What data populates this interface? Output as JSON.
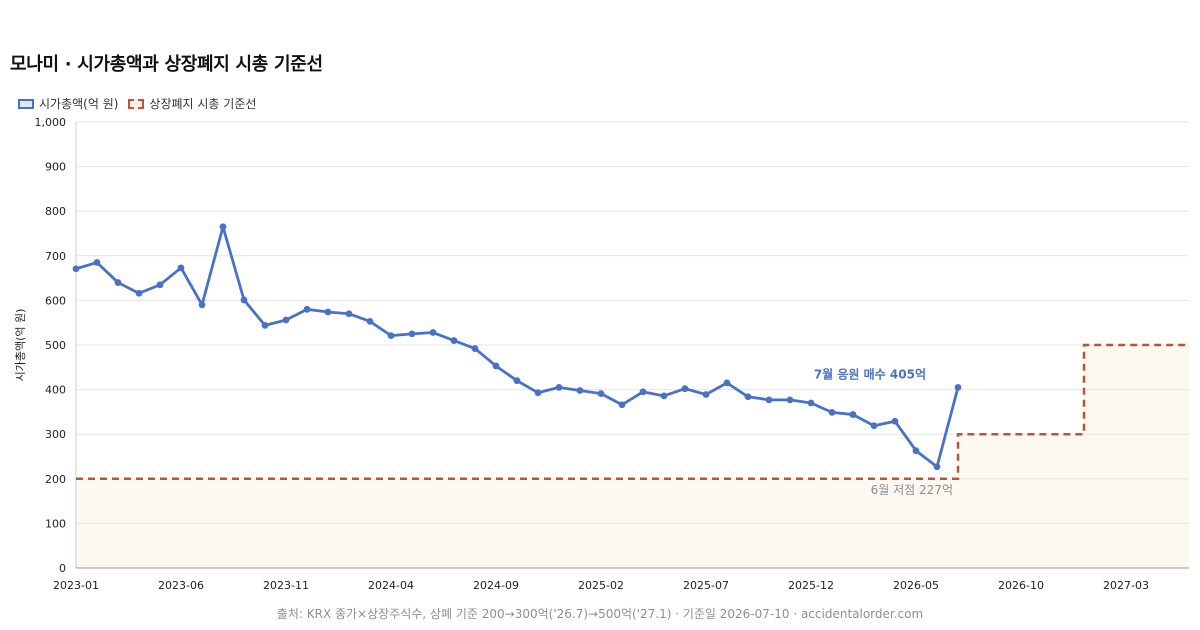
{
  "header": {
    "title": "모나미 · 시가총액과 상장폐지 시총 기준선"
  },
  "legend": [
    {
      "label": "시가총액(억 원)",
      "color": "#4a72c4"
    },
    {
      "label": "상장폐지 시총 기준선",
      "color": "#b8563a"
    }
  ],
  "footer": {
    "text": "출처: KRX 종가×상장주식수, 상폐 기준 200→300억('26.7)→500억('27.1) · 기준일 2026-07-10 · accidentalorder.com"
  },
  "chart_data": {
    "type": "line",
    "title": "모나미 · 시가총액과 상장폐지 시총 기준선",
    "ylabel": "시가총액(억 원)",
    "xlabel": "",
    "ylim": [
      0,
      1000
    ],
    "yticks": [
      0,
      100,
      200,
      300,
      400,
      500,
      600,
      700,
      800,
      900,
      1000
    ],
    "ytick_labels": [
      "0",
      "100",
      "200",
      "300",
      "400",
      "500",
      "600",
      "700",
      "800",
      "900",
      "1,000"
    ],
    "xlim": [
      "2023-01",
      "2027-06"
    ],
    "xticks": [
      "2023-01",
      "2023-06",
      "2023-11",
      "2024-04",
      "2024-09",
      "2025-02",
      "2025-07",
      "2025-12",
      "2026-05",
      "2026-10",
      "2027-03"
    ],
    "grid": true,
    "legend_position": "top-left",
    "series": [
      {
        "name": "시가총액(억 원)",
        "color": "#4a72c4",
        "x": [
          "2023-01",
          "2023-02",
          "2023-03",
          "2023-04",
          "2023-05",
          "2023-06",
          "2023-07",
          "2023-08",
          "2023-09",
          "2023-10",
          "2023-11",
          "2023-12",
          "2024-01",
          "2024-02",
          "2024-03",
          "2024-04",
          "2024-05",
          "2024-06",
          "2024-07",
          "2024-08",
          "2024-09",
          "2024-10",
          "2024-11",
          "2024-12",
          "2025-01",
          "2025-02",
          "2025-03",
          "2025-04",
          "2025-05",
          "2025-06",
          "2025-07",
          "2025-08",
          "2025-09",
          "2025-10",
          "2025-11",
          "2025-12",
          "2026-01",
          "2026-02",
          "2026-03",
          "2026-04",
          "2026-05",
          "2026-06",
          "2026-07"
        ],
        "values": [
          671,
          685,
          640,
          616,
          635,
          673,
          590,
          765,
          601,
          544,
          556,
          580,
          574,
          570,
          553,
          521,
          525,
          528,
          510,
          492,
          453,
          420,
          393,
          405,
          398,
          391,
          366,
          395,
          386,
          402,
          389,
          415,
          384,
          377,
          377,
          370,
          349,
          344,
          319,
          329,
          263,
          227,
          405
        ]
      },
      {
        "name": "상장폐지 시총 기준선",
        "color": "#b8563a",
        "style": "dashed-step",
        "steps": [
          {
            "from": "2023-01",
            "to": "2026-07",
            "value": 200
          },
          {
            "from": "2026-07",
            "to": "2027-01",
            "value": 300
          },
          {
            "from": "2027-01",
            "to": "2027-06",
            "value": 500
          }
        ]
      }
    ],
    "annotations": [
      {
        "text": "7월 응원 매수 405억",
        "x": "2026-07",
        "y": 405,
        "color": "#4a72c4"
      },
      {
        "text": "6월 저점 227억",
        "x": "2026-06",
        "y": 227,
        "color": "#8a8f98"
      }
    ]
  }
}
